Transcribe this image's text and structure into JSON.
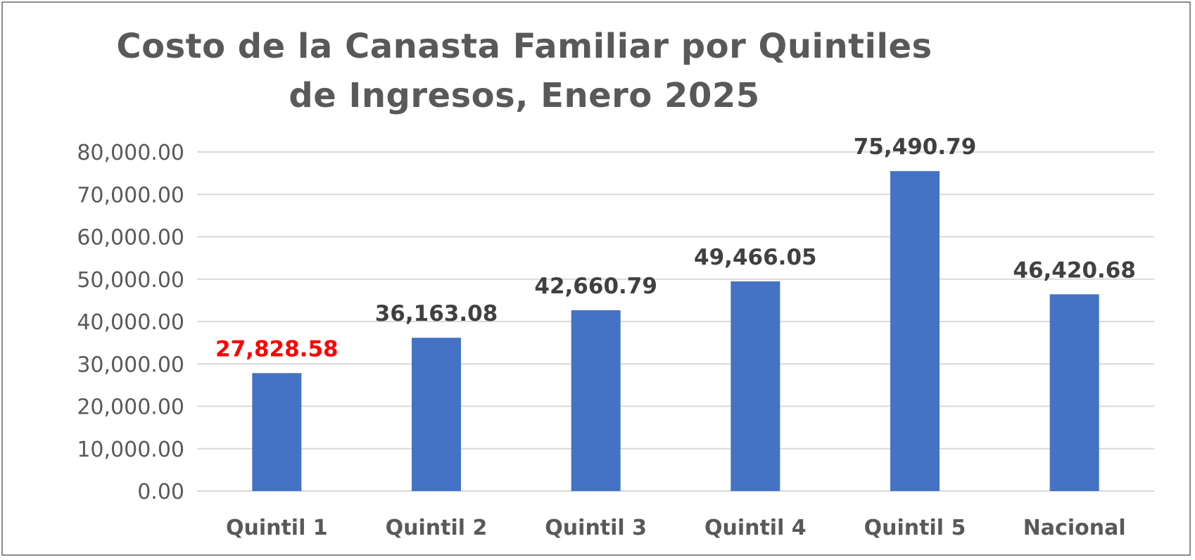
{
  "chart_data": {
    "type": "bar",
    "title_lines": [
      "Costo de la Canasta Familiar por Quintiles",
      "de Ingresos, Enero 2025"
    ],
    "categories": [
      "Quintil 1",
      "Quintil 2",
      "Quintil 3",
      "Quintil 4",
      "Quintil 5",
      "Nacional"
    ],
    "values": [
      27828.58,
      36163.08,
      42660.79,
      49466.05,
      75490.79,
      46420.68
    ],
    "value_labels": [
      "27,828.58",
      "36,163.08",
      "42,660.79",
      "49,466.05",
      "75,490.79",
      "46,420.68"
    ],
    "value_label_colors": [
      "#ff0000",
      "#404040",
      "#404040",
      "#404040",
      "#404040",
      "#404040"
    ],
    "yticks": [
      0,
      10000,
      20000,
      30000,
      40000,
      50000,
      60000,
      70000,
      80000
    ],
    "ytick_labels": [
      "0.00",
      "10,000.00",
      "20,000.00",
      "30,000.00",
      "40,000.00",
      "50,000.00",
      "60,000.00",
      "70,000.00",
      "80,000.00"
    ],
    "ylim": [
      0,
      80000
    ],
    "grid": true,
    "legend": "none",
    "bar_color": "#4472c4",
    "xlabel": "",
    "ylabel": ""
  }
}
